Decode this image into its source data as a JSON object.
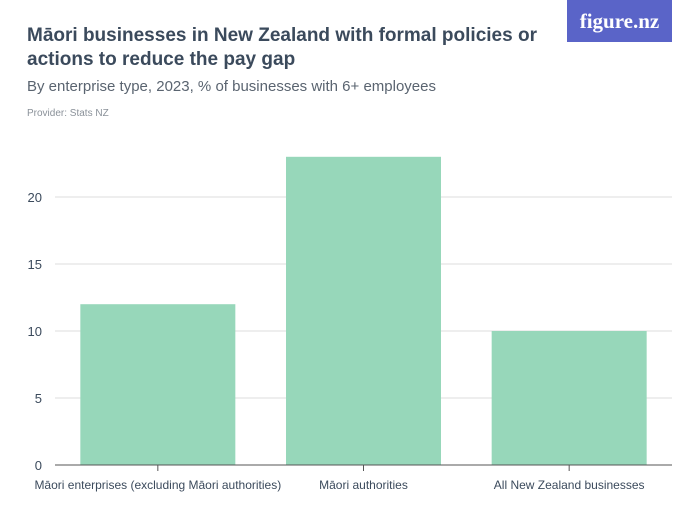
{
  "header": {
    "title": "Māori businesses in New Zealand with formal policies or actions to reduce the pay gap",
    "subtitle": "By enterprise type, 2023, % of businesses with 6+ employees",
    "provider": "Provider: Stats NZ",
    "logo_text": "figure.nz"
  },
  "colors": {
    "bar": "#97d7ba",
    "grid": "#dddddd",
    "axis": "#555555",
    "text": "#3b4a5c",
    "logo_bg": "#5a64c8"
  },
  "chart_data": {
    "type": "bar",
    "title": "Māori businesses in New Zealand with formal policies or actions to reduce the pay gap",
    "subtitle": "By enterprise type, 2023, % of businesses with 6+ employees",
    "categories": [
      "Māori enterprises (excluding Māori authorities)",
      "Māori authorities",
      "All New Zealand businesses"
    ],
    "values": [
      12,
      23,
      10
    ],
    "ylim": [
      0,
      25
    ],
    "yticks": [
      0,
      5,
      10,
      15,
      20
    ],
    "grid": true,
    "xlabel": "",
    "ylabel": ""
  }
}
